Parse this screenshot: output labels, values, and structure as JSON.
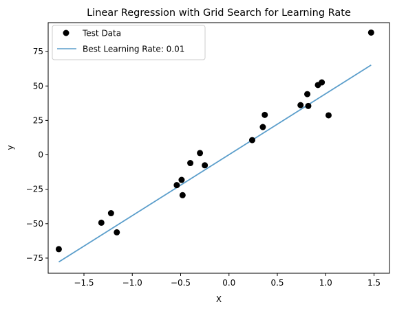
{
  "chart_data": {
    "type": "scatter",
    "title": "Linear Regression with Grid Search for Learning Rate",
    "xlabel": "X",
    "ylabel": "y",
    "xlim": [
      -1.87,
      1.66
    ],
    "ylim": [
      -86,
      96
    ],
    "x_ticks": [
      -1.5,
      -1.0,
      -0.5,
      0.0,
      0.5,
      1.0,
      1.5
    ],
    "x_tick_labels": [
      "−1.5",
      "−1.0",
      "−0.5",
      "0.0",
      "0.5",
      "1.0",
      "1.5"
    ],
    "y_ticks": [
      -75,
      -50,
      -25,
      0,
      25,
      50,
      75
    ],
    "y_tick_labels": [
      "−75",
      "−50",
      "−25",
      "0",
      "25",
      "50",
      "75"
    ],
    "grid": false,
    "legend_position": "top-left",
    "series": [
      {
        "name": "Test Data",
        "kind": "scatter",
        "color": "#000000",
        "points": [
          {
            "x": -1.76,
            "y": -68.5
          },
          {
            "x": -1.32,
            "y": -49.3
          },
          {
            "x": -1.22,
            "y": -42.4
          },
          {
            "x": -1.16,
            "y": -56.3
          },
          {
            "x": -0.54,
            "y": -22.0
          },
          {
            "x": -0.49,
            "y": -18.2
          },
          {
            "x": -0.48,
            "y": -29.3
          },
          {
            "x": -0.4,
            "y": -6.0
          },
          {
            "x": -0.3,
            "y": 1.3
          },
          {
            "x": -0.25,
            "y": -7.6
          },
          {
            "x": 0.24,
            "y": 10.7
          },
          {
            "x": 0.35,
            "y": 20.2
          },
          {
            "x": 0.37,
            "y": 29.0
          },
          {
            "x": 0.74,
            "y": 36.1
          },
          {
            "x": 0.81,
            "y": 44.1
          },
          {
            "x": 0.82,
            "y": 35.5
          },
          {
            "x": 0.92,
            "y": 50.7
          },
          {
            "x": 0.96,
            "y": 52.6
          },
          {
            "x": 1.03,
            "y": 28.7
          },
          {
            "x": 1.47,
            "y": 88.8
          }
        ]
      },
      {
        "name": "Best Learning Rate: 0.01",
        "kind": "line",
        "color": "#5b9ecb",
        "points": [
          {
            "x": -1.76,
            "y": -77.8
          },
          {
            "x": 1.47,
            "y": 65.2
          }
        ]
      }
    ]
  }
}
